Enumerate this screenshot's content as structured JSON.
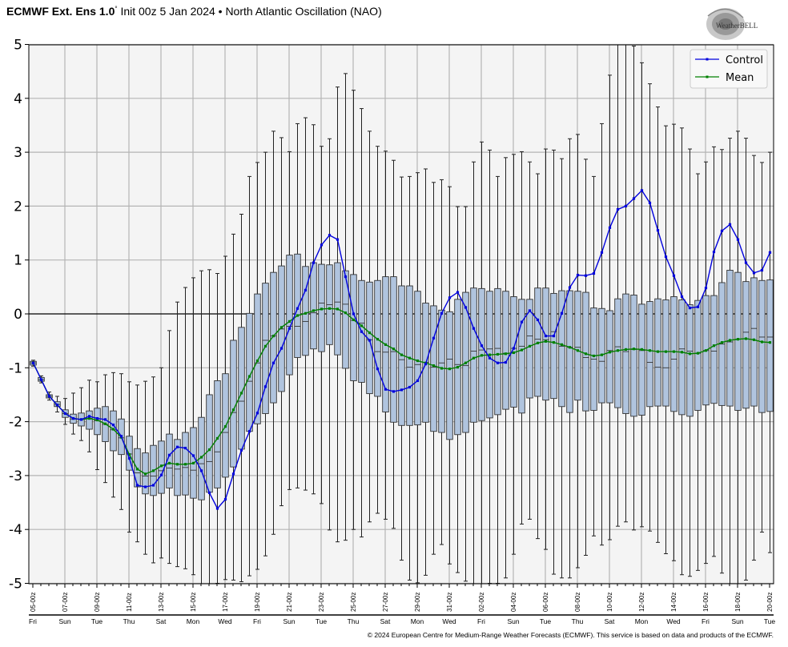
{
  "title": {
    "model": "ECMWF Ext. Ens 1.0",
    "degree": "°",
    "rest": " Init 00z 5 Jan 2024 • North Atlantic Oscillation (NAO)"
  },
  "logo_text": "WeatherBELL",
  "footer": "© 2024 European Centre for Medium-Range Weather Forecasts (ECMWF). This service is based on data and products of the ECMWF.",
  "colors": {
    "control": "#0000dd",
    "mean": "#008000",
    "box_fill": "#b0c4de",
    "background": "#f4f4f4"
  },
  "chart_data": {
    "type": "boxplot+line",
    "title": "North Atlantic Oscillation (NAO)",
    "x_start": "05-00z",
    "x_step_hours": 12,
    "ylim": [
      -5,
      5
    ],
    "yticks": [
      "5",
      "4",
      "3",
      "2",
      "1",
      "0",
      "-1",
      "-2",
      "-3",
      "-4",
      "-5"
    ],
    "ytick_values": [
      5,
      4,
      3,
      2,
      1,
      0,
      -1,
      -2,
      -3,
      -4,
      -5
    ],
    "xtick_labels": [
      "05-00z",
      "07-00z",
      "09-00z",
      "11-00z",
      "13-00z",
      "15-00z",
      "17-00z",
      "19-00z",
      "21-00z",
      "23-00z",
      "25-00z",
      "27-00z",
      "29-00z",
      "31-00z",
      "02-00z",
      "04-00z",
      "06-00z",
      "08-00z",
      "10-00z",
      "12-00z",
      "14-00z",
      "16-00z",
      "18-00z",
      "20-00z"
    ],
    "day_labels": [
      "Fri",
      "Sun",
      "Tue",
      "Thu",
      "Sat",
      "Mon",
      "Wed",
      "Fri",
      "Sun",
      "Tue",
      "Thu",
      "Sat",
      "Mon",
      "Wed",
      "Fri",
      "Sun",
      "Tue",
      "Thu",
      "Sat",
      "Mon",
      "Wed",
      "Fri",
      "Sun",
      "Tue"
    ],
    "grid": true,
    "legend": {
      "placement": "top-right",
      "entries": [
        "Control",
        "Mean"
      ]
    },
    "series": [
      {
        "name": "Control",
        "values": [
          -0.91,
          -1.22,
          -1.53,
          -1.69,
          -1.85,
          -1.94,
          -1.96,
          -1.9,
          -1.94,
          -1.96,
          -2.06,
          -2.27,
          -2.68,
          -3.18,
          -3.21,
          -3.18,
          -2.99,
          -2.62,
          -2.47,
          -2.49,
          -2.63,
          -2.91,
          -3.32,
          -3.61,
          -3.44,
          -2.97,
          -2.53,
          -2.18,
          -1.84,
          -1.35,
          -0.91,
          -0.64,
          -0.27,
          0.1,
          0.44,
          0.95,
          1.28,
          1.46,
          1.38,
          0.69,
          0.0,
          -0.33,
          -0.49,
          -1.02,
          -1.4,
          -1.44,
          -1.41,
          -1.36,
          -1.24,
          -0.93,
          -0.45,
          0.01,
          0.3,
          0.4,
          0.12,
          -0.27,
          -0.59,
          -0.82,
          -0.91,
          -0.9,
          -0.64,
          -0.15,
          0.06,
          -0.11,
          -0.41,
          -0.41,
          0.01,
          0.49,
          0.72,
          0.71,
          0.75,
          1.14,
          1.6,
          1.94,
          2.0,
          2.14,
          2.29,
          2.06,
          1.55,
          1.06,
          0.71,
          0.32,
          0.11,
          0.13,
          0.48,
          1.15,
          1.54,
          1.66,
          1.38,
          0.95,
          0.76,
          0.81,
          1.14
        ]
      },
      {
        "name": "Mean",
        "values": [
          -0.91,
          -1.22,
          -1.53,
          -1.69,
          -1.85,
          -1.94,
          -1.96,
          -1.94,
          -1.97,
          -2.04,
          -2.14,
          -2.29,
          -2.61,
          -2.88,
          -2.97,
          -2.91,
          -2.82,
          -2.77,
          -2.79,
          -2.79,
          -2.77,
          -2.66,
          -2.52,
          -2.31,
          -2.09,
          -1.78,
          -1.47,
          -1.16,
          -0.87,
          -0.6,
          -0.41,
          -0.25,
          -0.14,
          -0.03,
          0.01,
          0.06,
          0.09,
          0.1,
          0.09,
          0.02,
          -0.11,
          -0.22,
          -0.35,
          -0.47,
          -0.57,
          -0.65,
          -0.76,
          -0.82,
          -0.87,
          -0.91,
          -0.96,
          -1.01,
          -1.02,
          -0.99,
          -0.91,
          -0.82,
          -0.77,
          -0.76,
          -0.75,
          -0.74,
          -0.72,
          -0.67,
          -0.6,
          -0.54,
          -0.51,
          -0.53,
          -0.57,
          -0.62,
          -0.68,
          -0.74,
          -0.78,
          -0.76,
          -0.71,
          -0.68,
          -0.66,
          -0.65,
          -0.66,
          -0.68,
          -0.7,
          -0.7,
          -0.7,
          -0.71,
          -0.74,
          -0.73,
          -0.68,
          -0.59,
          -0.53,
          -0.49,
          -0.47,
          -0.46,
          -0.48,
          -0.52,
          -0.53
        ]
      }
    ],
    "boxes_fields": [
      "min",
      "q1",
      "median",
      "q3",
      "max"
    ],
    "boxes": [
      [
        -0.97,
        -0.95,
        -0.91,
        -0.88,
        -0.86
      ],
      [
        -1.28,
        -1.25,
        -1.22,
        -1.18,
        -1.15
      ],
      [
        -1.6,
        -1.56,
        -1.53,
        -1.5,
        -1.45
      ],
      [
        -1.82,
        -1.72,
        -1.68,
        -1.63,
        -1.53
      ],
      [
        -2.05,
        -1.92,
        -1.85,
        -1.78,
        -1.57
      ],
      [
        -2.23,
        -2.03,
        -1.95,
        -1.86,
        -1.47
      ],
      [
        -2.35,
        -2.08,
        -1.96,
        -1.84,
        -1.37
      ],
      [
        -2.56,
        -2.14,
        -1.94,
        -1.8,
        -1.23
      ],
      [
        -2.89,
        -2.24,
        -1.98,
        -1.75,
        -1.26
      ],
      [
        -3.13,
        -2.37,
        -2.05,
        -1.72,
        -1.13
      ],
      [
        -3.4,
        -2.54,
        -2.15,
        -1.8,
        -1.09
      ],
      [
        -3.63,
        -2.61,
        -2.3,
        -1.95,
        -1.11
      ],
      [
        -4.05,
        -2.9,
        -2.6,
        -2.27,
        -1.26
      ],
      [
        -4.23,
        -3.21,
        -2.95,
        -2.5,
        -1.32
      ],
      [
        -4.46,
        -3.34,
        -3.01,
        -2.58,
        -1.25
      ],
      [
        -4.62,
        -3.37,
        -3.01,
        -2.44,
        -1.17
      ],
      [
        -4.53,
        -3.33,
        -2.91,
        -2.36,
        -1.0
      ],
      [
        -4.63,
        -3.23,
        -2.86,
        -2.23,
        -0.31
      ],
      [
        -4.69,
        -3.37,
        -2.88,
        -2.33,
        0.22
      ],
      [
        -4.73,
        -3.36,
        -2.85,
        -2.2,
        0.49
      ],
      [
        -4.84,
        -3.42,
        -2.9,
        -2.11,
        0.67
      ],
      [
        -5.1,
        -3.45,
        -2.78,
        -1.92,
        0.8
      ],
      [
        -5.1,
        -3.31,
        -2.74,
        -1.5,
        0.82
      ],
      [
        -5.0,
        -3.23,
        -2.56,
        -1.24,
        0.75
      ],
      [
        -4.93,
        -3.03,
        -2.2,
        -1.11,
        1.07
      ],
      [
        -4.94,
        -2.84,
        -1.83,
        -0.49,
        1.48
      ],
      [
        -4.97,
        -2.51,
        -1.62,
        -0.25,
        1.85
      ],
      [
        -4.86,
        -2.18,
        -1.25,
        0.01,
        2.55
      ],
      [
        -4.74,
        -2.04,
        -0.91,
        0.37,
        2.81
      ],
      [
        -4.49,
        -1.85,
        -0.49,
        0.57,
        3.0
      ],
      [
        -4.09,
        -1.65,
        -0.41,
        0.77,
        3.39
      ],
      [
        -3.56,
        -1.44,
        -0.28,
        0.89,
        3.27
      ],
      [
        -3.26,
        -1.13,
        -0.23,
        1.09,
        3.01
      ],
      [
        -3.23,
        -0.81,
        -0.23,
        1.11,
        3.53
      ],
      [
        -3.27,
        -0.77,
        -0.14,
        0.88,
        3.64
      ],
      [
        -3.34,
        -0.65,
        0.02,
        0.95,
        3.51
      ],
      [
        -3.52,
        -0.7,
        0.2,
        0.92,
        3.11
      ],
      [
        -4.01,
        -0.57,
        0.17,
        0.91,
        3.25
      ],
      [
        -4.23,
        -0.76,
        0.22,
        0.95,
        4.21
      ],
      [
        -4.2,
        -1.01,
        0.18,
        0.8,
        4.46
      ],
      [
        -4.0,
        -1.24,
        -0.12,
        0.73,
        4.15
      ],
      [
        -4.14,
        -1.27,
        -0.17,
        0.62,
        3.81
      ],
      [
        -3.86,
        -1.48,
        -0.48,
        0.59,
        3.39
      ],
      [
        -3.7,
        -1.53,
        -0.7,
        0.62,
        3.11
      ],
      [
        -3.81,
        -1.82,
        -0.71,
        0.69,
        3.02
      ],
      [
        -3.98,
        -2.01,
        -0.7,
        0.69,
        2.85
      ],
      [
        -4.57,
        -2.07,
        -0.85,
        0.52,
        2.54
      ],
      [
        -4.94,
        -2.07,
        -0.99,
        0.52,
        2.55
      ],
      [
        -4.99,
        -2.06,
        -0.94,
        0.42,
        2.62
      ],
      [
        -4.85,
        -2.01,
        -0.9,
        0.2,
        2.69
      ],
      [
        -4.46,
        -2.18,
        -0.99,
        0.15,
        2.44
      ],
      [
        -4.28,
        -2.2,
        -0.91,
        0.07,
        2.49
      ],
      [
        -4.64,
        -2.33,
        -0.84,
        0.04,
        2.36
      ],
      [
        -4.8,
        -2.24,
        -0.94,
        0.27,
        1.99
      ],
      [
        -4.96,
        -2.2,
        -0.96,
        0.4,
        1.99
      ],
      [
        -5.1,
        -2.01,
        -0.69,
        0.48,
        2.82
      ],
      [
        -5.1,
        -1.98,
        -0.67,
        0.47,
        3.19
      ],
      [
        -5.0,
        -1.93,
        -0.65,
        0.42,
        3.04
      ],
      [
        -5.0,
        -1.87,
        -0.64,
        0.47,
        2.55
      ],
      [
        -4.9,
        -1.77,
        -0.73,
        0.42,
        2.9
      ],
      [
        -4.46,
        -1.73,
        -0.64,
        0.32,
        2.96
      ],
      [
        -3.9,
        -1.84,
        -0.6,
        0.27,
        3.01
      ],
      [
        -3.81,
        -1.56,
        -0.41,
        0.27,
        2.82
      ],
      [
        -4.17,
        -1.53,
        -0.47,
        0.48,
        2.6
      ],
      [
        -4.37,
        -1.6,
        -0.48,
        0.48,
        3.06
      ],
      [
        -4.83,
        -1.57,
        -0.33,
        0.38,
        3.04
      ],
      [
        -4.9,
        -1.72,
        -0.6,
        0.43,
        2.88
      ],
      [
        -4.9,
        -1.83,
        -0.62,
        0.43,
        3.25
      ],
      [
        -4.71,
        -1.6,
        -0.62,
        0.42,
        3.33
      ],
      [
        -4.48,
        -1.8,
        -0.81,
        0.4,
        2.87
      ],
      [
        -4.12,
        -1.79,
        -0.84,
        0.11,
        2.55
      ],
      [
        -4.29,
        -1.65,
        -0.88,
        0.1,
        3.53
      ],
      [
        -4.19,
        -1.65,
        -0.68,
        0.06,
        4.43
      ],
      [
        -3.94,
        -1.74,
        -0.61,
        0.28,
        5.2
      ],
      [
        -3.86,
        -1.85,
        -0.7,
        0.37,
        5.3
      ],
      [
        -4.01,
        -1.9,
        -0.66,
        0.35,
        4.97
      ],
      [
        -3.95,
        -1.88,
        -0.68,
        0.18,
        4.66
      ],
      [
        -4.03,
        -1.72,
        -0.9,
        0.23,
        4.27
      ],
      [
        -4.24,
        -1.71,
        -0.99,
        0.28,
        3.84
      ],
      [
        -4.45,
        -1.71,
        -1.0,
        0.26,
        3.49
      ],
      [
        -4.58,
        -1.81,
        -0.84,
        0.32,
        3.52
      ],
      [
        -4.84,
        -1.87,
        -0.65,
        0.26,
        3.45
      ],
      [
        -4.87,
        -1.9,
        -0.69,
        0.17,
        3.06
      ],
      [
        -4.76,
        -1.79,
        -0.73,
        0.25,
        2.6
      ],
      [
        -4.63,
        -1.69,
        -0.68,
        0.34,
        2.82
      ],
      [
        -4.5,
        -1.66,
        -0.69,
        0.34,
        3.1
      ],
      [
        -4.81,
        -1.7,
        -0.56,
        0.58,
        3.05
      ],
      [
        -5.02,
        -1.71,
        -0.52,
        0.81,
        3.26
      ],
      [
        -5.1,
        -1.79,
        -0.47,
        0.77,
        3.39
      ],
      [
        -4.94,
        -1.75,
        -0.34,
        0.6,
        3.26
      ],
      [
        -4.57,
        -1.71,
        -0.27,
        0.67,
        2.94
      ],
      [
        -4.05,
        -1.83,
        -0.43,
        0.62,
        2.81
      ],
      [
        -4.43,
        -1.81,
        -0.43,
        0.63,
        3.0
      ]
    ]
  }
}
